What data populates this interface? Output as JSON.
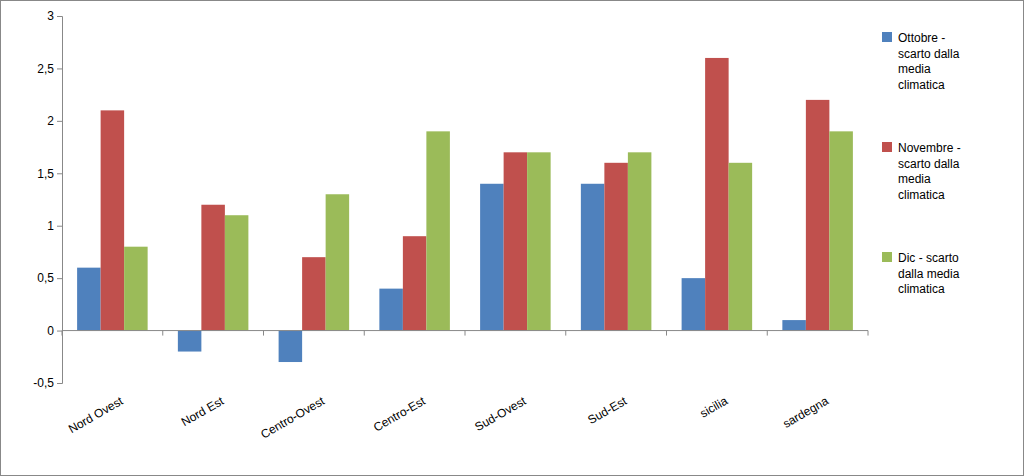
{
  "chart_data": {
    "type": "bar",
    "categories": [
      "Nord Ovest",
      "Nord Est",
      "Centro-Ovest",
      "Centro-Est",
      "Sud-Ovest",
      "Sud-Est",
      "sicilia",
      "sardegna"
    ],
    "series": [
      {
        "name": "Ottobre - scarto dalla media climatica",
        "color": "#4f81bd",
        "values": [
          0.6,
          -0.2,
          -0.3,
          0.4,
          1.4,
          1.4,
          0.5,
          0.1
        ]
      },
      {
        "name": "Novembre - scarto dalla media climatica",
        "color": "#c0504d",
        "values": [
          2.1,
          1.2,
          0.7,
          0.9,
          1.7,
          1.6,
          2.6,
          2.2
        ]
      },
      {
        "name": "Dic - scarto dalla media climatica",
        "color": "#9bbb59",
        "values": [
          0.8,
          1.1,
          1.3,
          1.9,
          1.7,
          1.7,
          1.6,
          1.9
        ]
      }
    ],
    "ylim": [
      -0.5,
      3
    ],
    "yticks": [
      {
        "value": -0.5,
        "label": "-0,5"
      },
      0,
      {
        "value": 0.5,
        "label": "0,5"
      },
      1,
      {
        "value": 1.5,
        "label": "1,5"
      },
      2,
      {
        "value": 2.5,
        "label": "2,5"
      },
      3
    ],
    "grid": false,
    "legend": "right"
  }
}
